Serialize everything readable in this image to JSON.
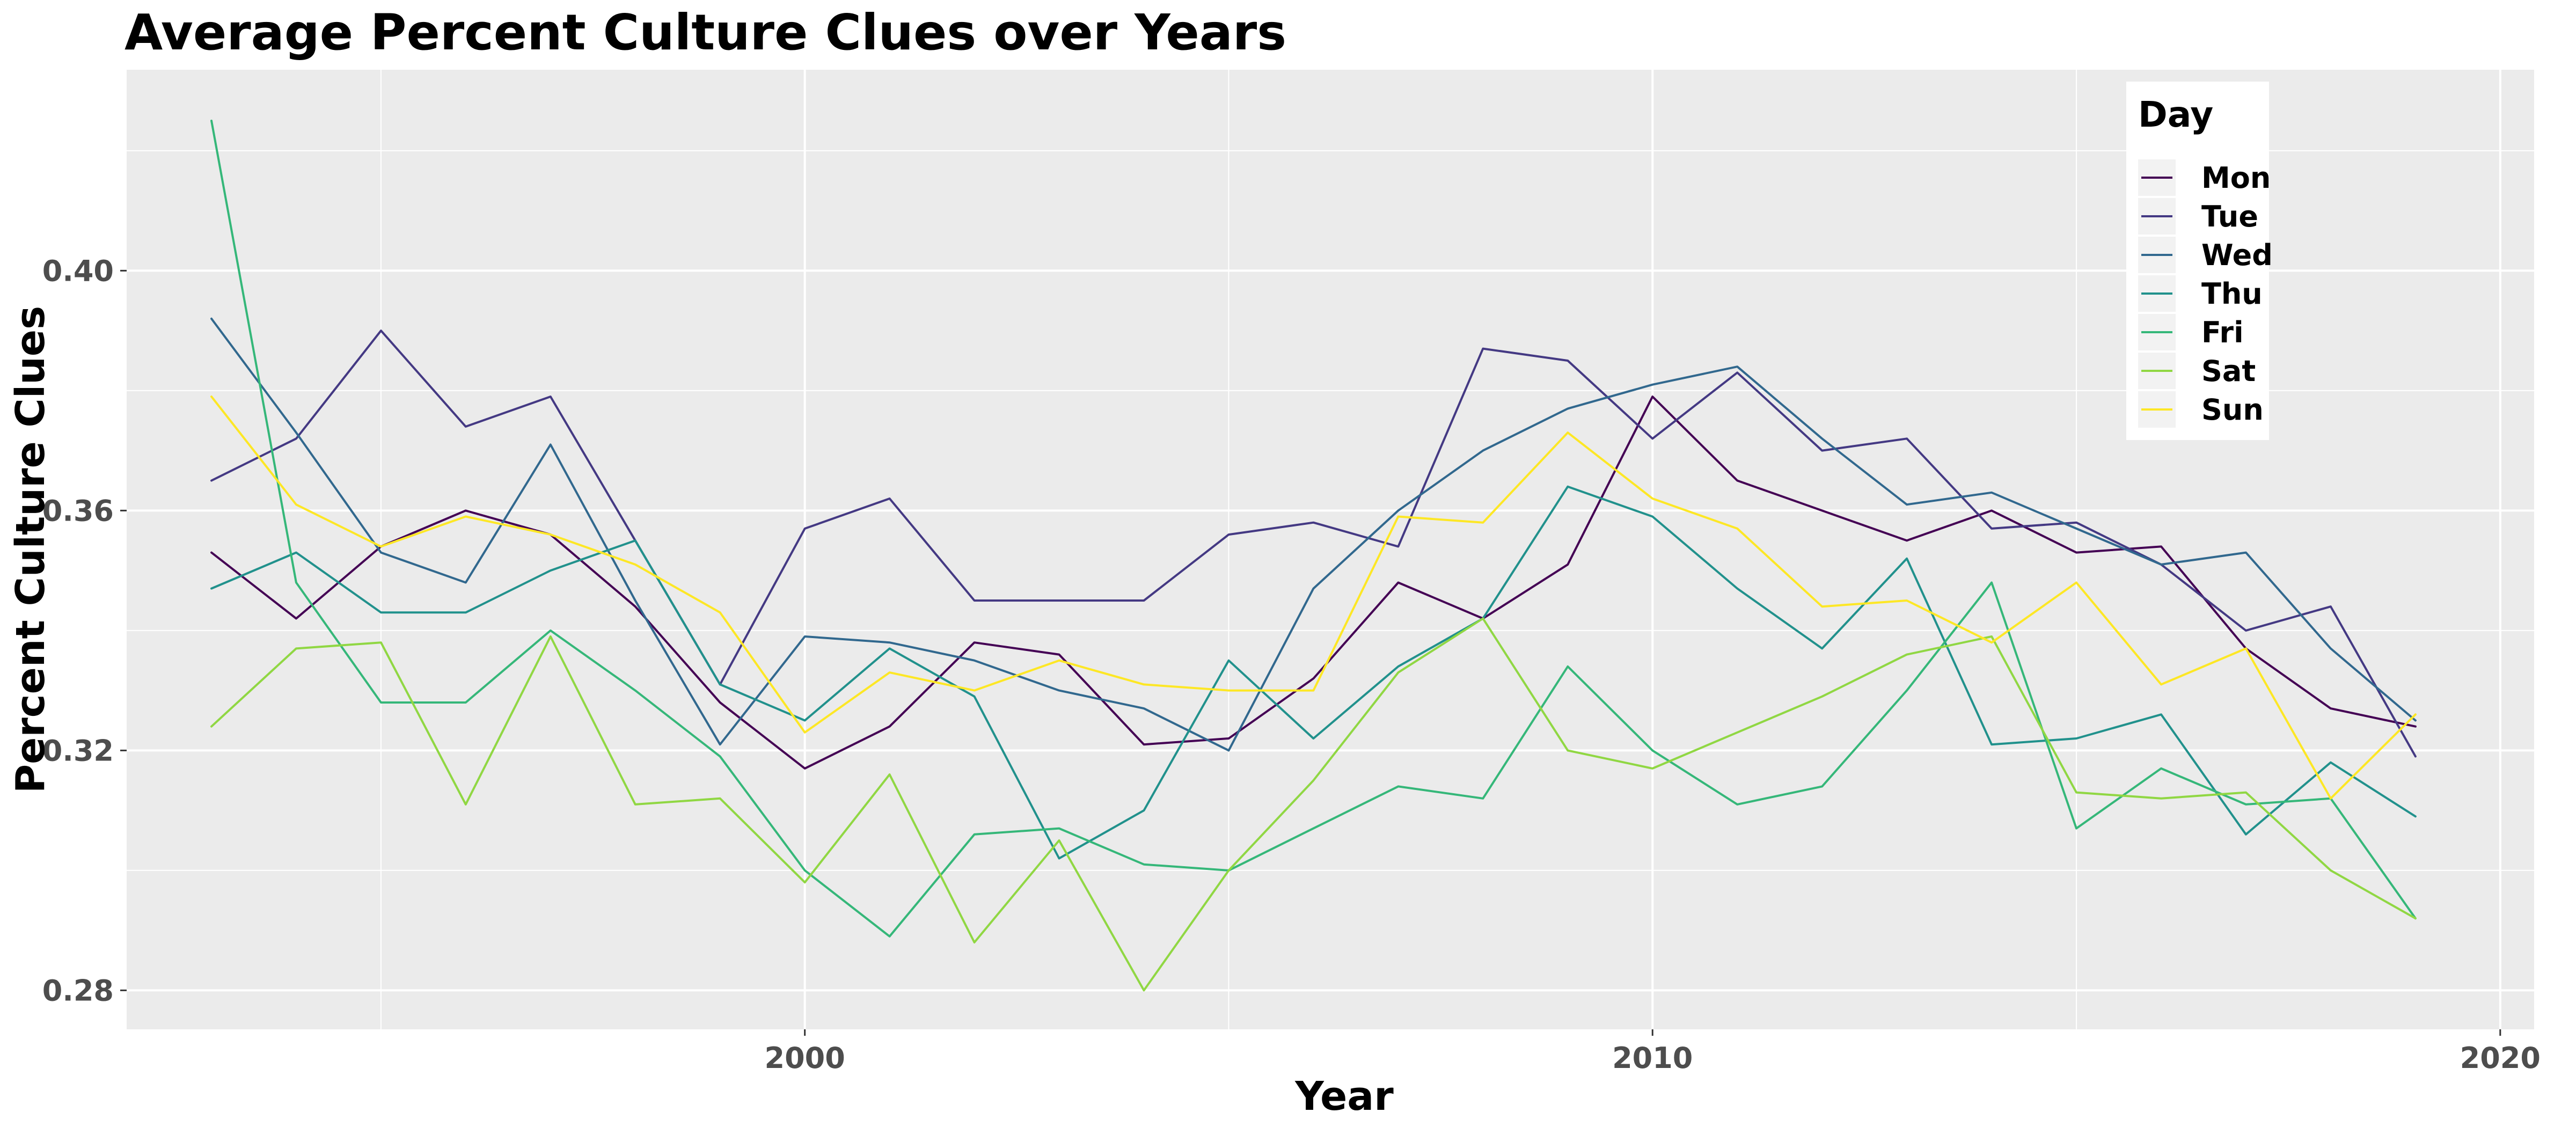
{
  "chart_data": {
    "type": "line",
    "title": "Average Percent Culture Clues over Years",
    "xlabel": "Year",
    "ylabel": "Percent Culture Clues",
    "xlim": [
      1992.0,
      2020.4
    ],
    "ylim": [
      0.2735,
      0.4335
    ],
    "x_ticks": [
      {
        "value": 2000,
        "label": "2000"
      },
      {
        "value": 2010,
        "label": "2010"
      },
      {
        "value": 2020,
        "label": "2020"
      }
    ],
    "y_ticks": [
      {
        "value": 0.28,
        "label": "0.28"
      },
      {
        "value": 0.32,
        "label": "0.32"
      },
      {
        "value": 0.36,
        "label": "0.36"
      },
      {
        "value": 0.4,
        "label": "0.40"
      }
    ],
    "grid": true,
    "legend": {
      "title": "Day",
      "position": "top-right"
    },
    "x": [
      1993,
      1994,
      1995,
      1996,
      1997,
      1998,
      1999,
      2000,
      2001,
      2002,
      2003,
      2004,
      2005,
      2006,
      2007,
      2008,
      2009,
      2010,
      2011,
      2012,
      2013,
      2014,
      2015,
      2016,
      2017,
      2018,
      2019
    ],
    "series": [
      {
        "name": "Mon",
        "color": "#440154",
        "values": [
          0.353,
          0.342,
          0.354,
          0.36,
          0.356,
          0.344,
          0.328,
          0.317,
          0.324,
          0.338,
          0.336,
          0.321,
          0.322,
          0.332,
          0.348,
          0.342,
          0.351,
          0.379,
          0.365,
          0.36,
          0.355,
          0.36,
          0.353,
          0.354,
          0.337,
          0.327,
          0.324
        ]
      },
      {
        "name": "Tue",
        "color": "#443983",
        "values": [
          0.365,
          0.372,
          0.39,
          0.374,
          0.379,
          0.355,
          0.331,
          0.357,
          0.362,
          0.345,
          0.345,
          0.345,
          0.356,
          0.358,
          0.354,
          0.387,
          0.385,
          0.372,
          0.383,
          0.37,
          0.372,
          0.357,
          0.358,
          0.351,
          0.34,
          0.344,
          0.319
        ]
      },
      {
        "name": "Wed",
        "color": "#31688e",
        "values": [
          0.392,
          0.373,
          0.353,
          0.348,
          0.371,
          0.345,
          0.321,
          0.339,
          0.338,
          0.335,
          0.33,
          0.327,
          0.32,
          0.347,
          0.36,
          0.37,
          0.377,
          0.381,
          0.384,
          0.372,
          0.361,
          0.363,
          0.357,
          0.351,
          0.353,
          0.337,
          0.325
        ]
      },
      {
        "name": "Thu",
        "color": "#21918c",
        "values": [
          0.347,
          0.353,
          0.343,
          0.343,
          0.35,
          0.355,
          0.331,
          0.325,
          0.337,
          0.329,
          0.302,
          0.31,
          0.335,
          0.322,
          0.334,
          0.342,
          0.364,
          0.359,
          0.347,
          0.337,
          0.352,
          0.321,
          0.322,
          0.326,
          0.306,
          0.318,
          0.309
        ]
      },
      {
        "name": "Fri",
        "color": "#35b779",
        "values": [
          0.425,
          0.348,
          0.328,
          0.328,
          0.34,
          0.33,
          0.319,
          0.3,
          0.289,
          0.306,
          0.307,
          0.301,
          0.3,
          0.307,
          0.314,
          0.312,
          0.334,
          0.32,
          0.311,
          0.314,
          0.33,
          0.348,
          0.307,
          0.317,
          0.311,
          0.312,
          0.292
        ]
      },
      {
        "name": "Sat",
        "color": "#90d743",
        "values": [
          0.324,
          0.337,
          0.338,
          0.311,
          0.339,
          0.311,
          0.312,
          0.298,
          0.316,
          0.288,
          0.305,
          0.28,
          0.3,
          0.315,
          0.333,
          0.342,
          0.32,
          0.317,
          0.323,
          0.329,
          0.336,
          0.339,
          0.313,
          0.312,
          0.313,
          0.3,
          0.292
        ]
      },
      {
        "name": "Sun",
        "color": "#fde725",
        "values": [
          0.379,
          0.361,
          0.354,
          0.359,
          0.356,
          0.351,
          0.343,
          0.323,
          0.333,
          0.33,
          0.335,
          0.331,
          0.33,
          0.33,
          0.359,
          0.358,
          0.373,
          0.362,
          0.357,
          0.344,
          0.345,
          0.338,
          0.348,
          0.331,
          0.337,
          0.312,
          0.326
        ]
      }
    ]
  }
}
